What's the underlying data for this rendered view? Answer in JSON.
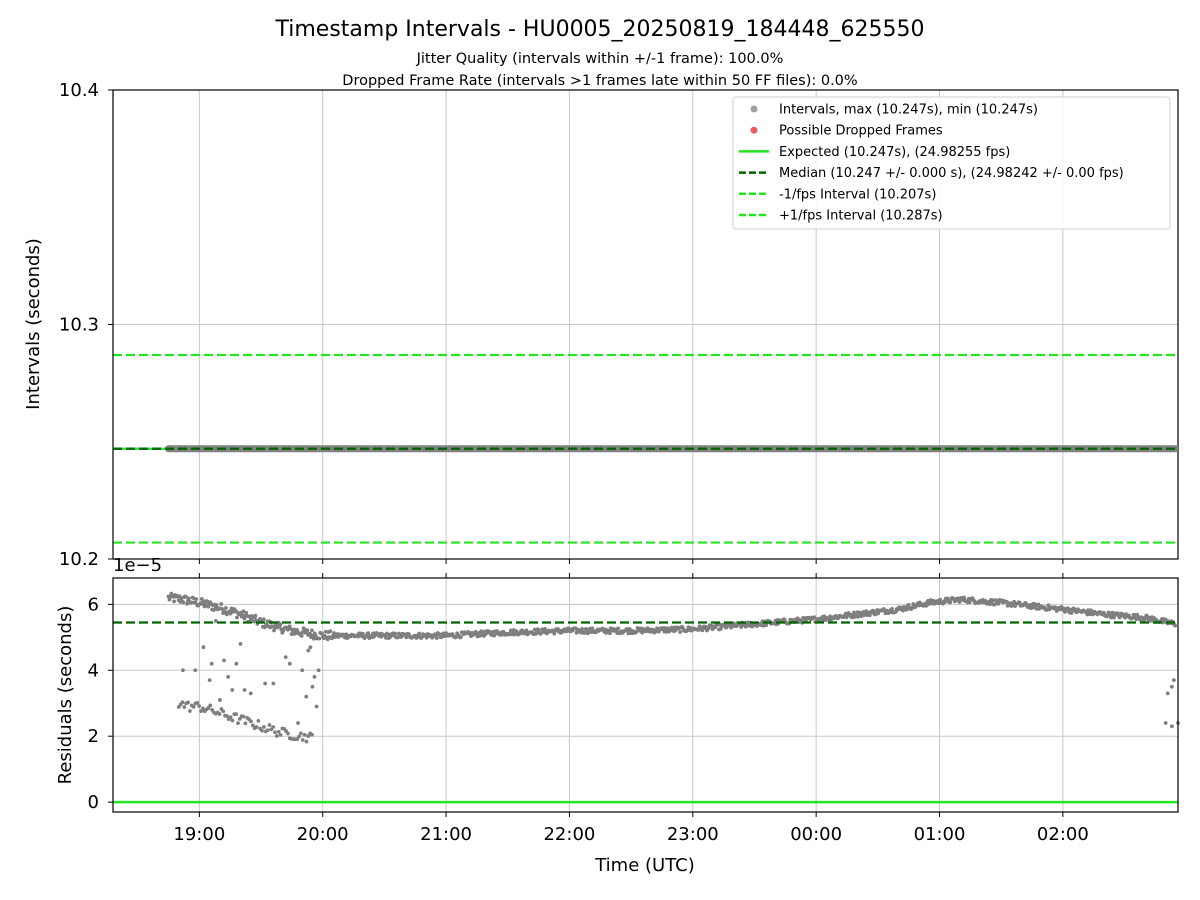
{
  "header": {
    "title": "Timestamp Intervals - HU0005_20250819_184448_625550",
    "subtitle_1": "Jitter Quality (intervals within +/-1 frame): 100.0%",
    "subtitle_2": "Dropped Frame Rate (intervals >1 frames late within 50 FF files): 0.0%"
  },
  "chart_data": [
    {
      "type": "scatter",
      "panel": "top",
      "ylabel": "Intervals (seconds)",
      "ylim": [
        10.2,
        10.4
      ],
      "yticks": [
        "10.2",
        "10.3",
        "10.4"
      ],
      "grid": true,
      "legend_position": "top-right",
      "legend": [
        {
          "label": "Intervals, max (10.247s), min (10.247s)",
          "kind": "marker",
          "color": "#a0a0a0"
        },
        {
          "label": "Possible Dropped Frames",
          "kind": "marker",
          "color": "#f05a5a"
        },
        {
          "label": "Expected (10.247s), (24.98255 fps)",
          "kind": "solid",
          "color": "#22e622"
        },
        {
          "label": "Median (10.247 +/- 0.000 s), (24.98242 +/- 0.00 fps)",
          "kind": "dashed",
          "color": "#006400"
        },
        {
          "label": "-1/fps Interval (10.207s)",
          "kind": "dashed",
          "color": "#22e622"
        },
        {
          "label": "+1/fps Interval (10.287s)",
          "kind": "dashed",
          "color": "#22e622"
        }
      ],
      "lines": {
        "expected": 10.247,
        "median": 10.247,
        "minus_1fps": 10.207,
        "plus_1fps": 10.287
      },
      "intervals": {
        "value": 10.247,
        "x_start": "18:45",
        "x_end": "02:55"
      }
    },
    {
      "type": "scatter",
      "panel": "bottom",
      "xlabel": "Time (UTC)",
      "ylabel": "Residuals (seconds)",
      "y_offset_label": "1e−5",
      "ylim": [
        -0.3,
        6.8
      ],
      "yticks": [
        "0",
        "2",
        "4",
        "6"
      ],
      "xticks": [
        "19:00",
        "20:00",
        "21:00",
        "22:00",
        "23:00",
        "00:00",
        "01:00",
        "02:00"
      ],
      "grid": true,
      "lines": {
        "expected": 0,
        "median": 5.45
      },
      "main_band": [
        {
          "t": "18:45",
          "y": 6.2
        },
        {
          "t": "18:52",
          "y": 6.15
        },
        {
          "t": "19:00",
          "y": 6.05
        },
        {
          "t": "19:10",
          "y": 5.9
        },
        {
          "t": "19:20",
          "y": 5.7
        },
        {
          "t": "19:30",
          "y": 5.45
        },
        {
          "t": "19:45",
          "y": 5.2
        },
        {
          "t": "20:00",
          "y": 5.05
        },
        {
          "t": "20:30",
          "y": 5.05
        },
        {
          "t": "21:00",
          "y": 5.05
        },
        {
          "t": "21:30",
          "y": 5.15
        },
        {
          "t": "22:00",
          "y": 5.2
        },
        {
          "t": "22:30",
          "y": 5.2
        },
        {
          "t": "23:00",
          "y": 5.25
        },
        {
          "t": "23:20",
          "y": 5.35
        },
        {
          "t": "23:40",
          "y": 5.45
        },
        {
          "t": "00:00",
          "y": 5.55
        },
        {
          "t": "00:20",
          "y": 5.7
        },
        {
          "t": "00:40",
          "y": 5.85
        },
        {
          "t": "00:55",
          "y": 6.05
        },
        {
          "t": "01:10",
          "y": 6.15
        },
        {
          "t": "01:30",
          "y": 6.05
        },
        {
          "t": "01:45",
          "y": 5.95
        },
        {
          "t": "02:00",
          "y": 5.85
        },
        {
          "t": "02:20",
          "y": 5.7
        },
        {
          "t": "02:40",
          "y": 5.6
        },
        {
          "t": "02:55",
          "y": 5.4
        }
      ],
      "lower_cluster": [
        {
          "t": "18:50",
          "y": 3.0
        },
        {
          "t": "18:55",
          "y": 2.9
        },
        {
          "t": "19:00",
          "y": 2.9
        },
        {
          "t": "19:05",
          "y": 2.8
        },
        {
          "t": "19:10",
          "y": 2.7
        },
        {
          "t": "19:15",
          "y": 2.6
        },
        {
          "t": "19:20",
          "y": 2.5
        },
        {
          "t": "19:25",
          "y": 2.4
        },
        {
          "t": "19:30",
          "y": 2.3
        },
        {
          "t": "19:35",
          "y": 2.2
        },
        {
          "t": "19:40",
          "y": 2.1
        },
        {
          "t": "19:45",
          "y": 2.05
        },
        {
          "t": "19:50",
          "y": 2.0
        },
        {
          "t": "19:55",
          "y": 1.95
        }
      ],
      "outliers": [
        {
          "t": "18:52",
          "y": 4.0
        },
        {
          "t": "18:58",
          "y": 4.0
        },
        {
          "t": "19:02",
          "y": 4.7
        },
        {
          "t": "19:05",
          "y": 3.7
        },
        {
          "t": "19:06",
          "y": 4.2
        },
        {
          "t": "19:08",
          "y": 5.5
        },
        {
          "t": "19:10",
          "y": 3.1
        },
        {
          "t": "19:12",
          "y": 4.3
        },
        {
          "t": "19:14",
          "y": 3.8
        },
        {
          "t": "19:16",
          "y": 3.4
        },
        {
          "t": "19:18",
          "y": 4.2
        },
        {
          "t": "19:20",
          "y": 4.8
        },
        {
          "t": "19:22",
          "y": 3.4
        },
        {
          "t": "19:25",
          "y": 3.3
        },
        {
          "t": "19:27",
          "y": 5.6
        },
        {
          "t": "19:32",
          "y": 3.6
        },
        {
          "t": "19:36",
          "y": 3.6
        },
        {
          "t": "19:38",
          "y": 5.3
        },
        {
          "t": "19:42",
          "y": 4.4
        },
        {
          "t": "19:44",
          "y": 4.2
        },
        {
          "t": "19:46",
          "y": 5.1
        },
        {
          "t": "19:48",
          "y": 2.4
        },
        {
          "t": "19:50",
          "y": 4.0
        },
        {
          "t": "19:52",
          "y": 3.2
        },
        {
          "t": "19:53",
          "y": 4.6
        },
        {
          "t": "19:54",
          "y": 4.7
        },
        {
          "t": "19:55",
          "y": 3.5
        },
        {
          "t": "19:56",
          "y": 3.8
        },
        {
          "t": "19:57",
          "y": 2.9
        },
        {
          "t": "19:58",
          "y": 4.0
        },
        {
          "t": "02:51",
          "y": 3.3
        },
        {
          "t": "02:53",
          "y": 3.5
        },
        {
          "t": "02:54",
          "y": 3.7
        },
        {
          "t": "02:50",
          "y": 2.4
        },
        {
          "t": "02:53",
          "y": 2.3
        },
        {
          "t": "02:56",
          "y": 2.4
        }
      ]
    }
  ]
}
